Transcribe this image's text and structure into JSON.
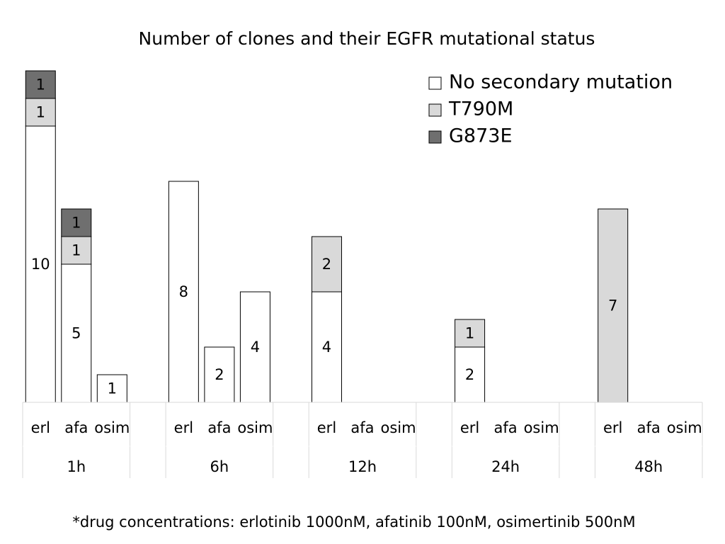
{
  "chart_data": {
    "type": "stacked-bar",
    "title": "Number of clones and their EGFR mutational status",
    "categories": [
      "erl",
      "afa",
      "osim",
      null,
      "erl",
      "afa",
      "osim",
      null,
      "erl",
      "afa",
      "osim",
      null,
      "erl",
      "afa",
      "osim",
      null,
      "erl",
      "afa",
      "osim"
    ],
    "groups": [
      "1h",
      "6h",
      "12h",
      "24h",
      "48h"
    ],
    "series": [
      {
        "name": "No secondary mutation",
        "color": "#ffffff",
        "values": [
          10,
          5,
          1,
          null,
          8,
          2,
          4,
          null,
          4,
          0,
          0,
          null,
          2,
          0,
          0,
          null,
          0,
          0,
          0
        ]
      },
      {
        "name": "T790M",
        "color": "#d9d9d9",
        "values": [
          1,
          1,
          0,
          null,
          0,
          0,
          0,
          null,
          2,
          0,
          0,
          null,
          1,
          0,
          0,
          null,
          7,
          0,
          0
        ]
      },
      {
        "name": "G873E",
        "color": "#6f6f6f",
        "values": [
          1,
          1,
          0,
          null,
          0,
          0,
          0,
          null,
          0,
          0,
          0,
          null,
          0,
          0,
          0,
          null,
          0,
          0,
          0
        ]
      }
    ],
    "legend": "top-right",
    "footnote": "*drug concentrations: erlotinib 1000nM, afatinib 100nM, osimertinib 500nM"
  }
}
